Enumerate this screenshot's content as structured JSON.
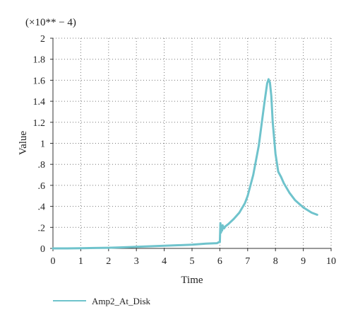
{
  "chart_data": {
    "type": "line",
    "scale_note": "(×10** − 4)",
    "xlabel": "Time",
    "ylabel": "Value",
    "xlim": [
      0,
      10
    ],
    "ylim": [
      0,
      2
    ],
    "x_ticks": [
      0,
      1,
      2,
      3,
      4,
      5,
      6,
      7,
      8,
      9,
      10
    ],
    "x_tick_labels": [
      "0",
      "1",
      "2",
      "3",
      "4",
      "5",
      "6",
      "7",
      "8",
      "9",
      "10"
    ],
    "y_ticks": [
      0,
      0.2,
      0.4,
      0.6,
      0.8,
      1.0,
      1.2,
      1.4,
      1.6,
      1.8,
      2.0
    ],
    "y_tick_labels": [
      "0",
      ".2",
      ".4",
      ".6",
      ".8",
      "1",
      "1.2",
      "1.4",
      "1.6",
      "1.8",
      "2"
    ],
    "grid": true,
    "grid_style": "dotted",
    "legend_placement": "bottom-left",
    "series": [
      {
        "name": "Amp2_At_Disk",
        "color": "#6fc3cc",
        "x": [
          0,
          0.5,
          1.0,
          1.5,
          2.0,
          2.5,
          3.0,
          3.5,
          4.0,
          4.5,
          5.0,
          5.5,
          5.9,
          5.97,
          6.0,
          6.02,
          6.04,
          6.06,
          6.08,
          6.1,
          6.15,
          6.2,
          6.3,
          6.5,
          6.7,
          6.9,
          7.0,
          7.2,
          7.4,
          7.5,
          7.6,
          7.7,
          7.75,
          7.8,
          7.85,
          7.9,
          8.0,
          8.1,
          8.2,
          8.3,
          8.5,
          8.7,
          9.0,
          9.3,
          9.5
        ],
        "y": [
          0.0,
          0.0,
          0.002,
          0.004,
          0.006,
          0.01,
          0.015,
          0.02,
          0.025,
          0.03,
          0.035,
          0.045,
          0.05,
          0.06,
          0.06,
          0.24,
          0.15,
          0.2,
          0.17,
          0.22,
          0.19,
          0.21,
          0.23,
          0.28,
          0.34,
          0.43,
          0.5,
          0.7,
          0.98,
          1.18,
          1.38,
          1.57,
          1.61,
          1.58,
          1.45,
          1.2,
          0.9,
          0.73,
          0.68,
          0.62,
          0.53,
          0.46,
          0.39,
          0.34,
          0.32
        ]
      }
    ]
  }
}
